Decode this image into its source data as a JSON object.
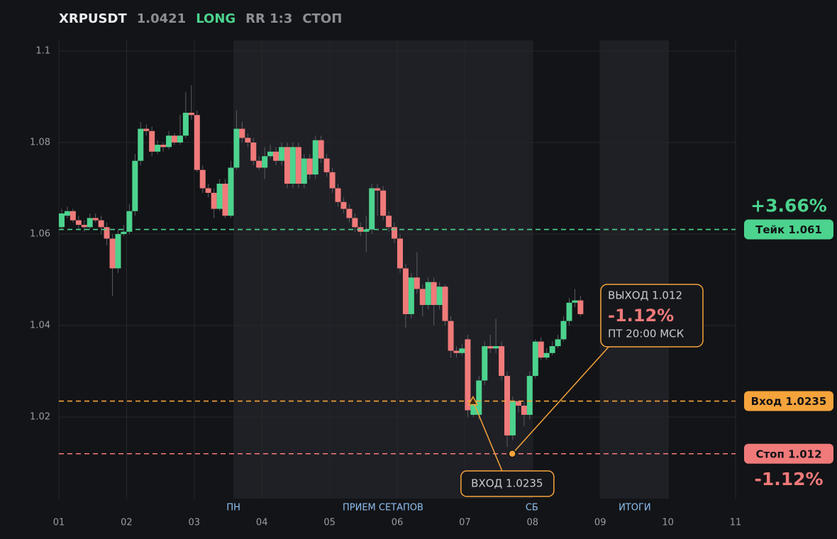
{
  "chart_data": {
    "type": "candlestick",
    "title": "XRPUSDT",
    "price": 1.0421,
    "side": "LONG",
    "rr": "RR 1:3",
    "status": "СТОП",
    "up_color": "#4cd38e",
    "down_color": "#f07a7a",
    "xlim": [
      1,
      11
    ],
    "xticks": [
      {
        "value": 1,
        "label": "01"
      },
      {
        "value": 2,
        "label": "02"
      },
      {
        "value": 3,
        "label": "03"
      },
      {
        "value": 4,
        "label": "04"
      },
      {
        "value": 5,
        "label": "05"
      },
      {
        "value": 6,
        "label": "06"
      },
      {
        "value": 7,
        "label": "07"
      },
      {
        "value": 8,
        "label": "08"
      },
      {
        "value": 9,
        "label": "09"
      },
      {
        "value": 10,
        "label": "10"
      },
      {
        "value": 11,
        "label": "11"
      }
    ],
    "ylim": [
      1.0022,
      1.1023
    ],
    "yticks": [
      1.02,
      1.04,
      1.06,
      1.08,
      1.1
    ],
    "grid": true,
    "sessions": [
      {
        "start": 3.58,
        "end": 7.99
      },
      {
        "start": 9.01,
        "end": 10.01
      }
    ],
    "session_labels": [
      {
        "label": "ПН",
        "x": 3.58
      },
      {
        "label": "ПРИЕМ СЕТАПОВ",
        "x": 5.79
      },
      {
        "label": "СБ",
        "x": 7.99
      },
      {
        "label": "ИТОГИ",
        "x": 9.51
      }
    ],
    "x": [
      1.042,
      1.125,
      1.208,
      1.292,
      1.375,
      1.458,
      1.542,
      1.625,
      1.708,
      1.792,
      1.875,
      1.958,
      2.042,
      2.125,
      2.208,
      2.292,
      2.375,
      2.458,
      2.542,
      2.625,
      2.708,
      2.792,
      2.875,
      2.958,
      3.042,
      3.125,
      3.208,
      3.292,
      3.375,
      3.458,
      3.542,
      3.625,
      3.708,
      3.792,
      3.875,
      3.958,
      4.042,
      4.125,
      4.208,
      4.292,
      4.375,
      4.458,
      4.542,
      4.625,
      4.708,
      4.792,
      4.875,
      4.958,
      5.042,
      5.125,
      5.208,
      5.292,
      5.375,
      5.458,
      5.542,
      5.625,
      5.708,
      5.792,
      5.875,
      5.958,
      6.042,
      6.125,
      6.208,
      6.292,
      6.375,
      6.458,
      6.542,
      6.625,
      6.708,
      6.792,
      6.875,
      6.958,
      7.042,
      7.125,
      7.208,
      7.292,
      7.375,
      7.458,
      7.542,
      7.625,
      7.708,
      7.792,
      7.875,
      7.958,
      8.042,
      8.125,
      8.208,
      8.292,
      8.375,
      8.458,
      8.542,
      8.625,
      8.708
    ],
    "open": [
      1.0615,
      1.064,
      1.065,
      1.063,
      1.062,
      1.0615,
      1.0635,
      1.063,
      1.0615,
      1.059,
      1.0525,
      1.06,
      1.0605,
      1.065,
      1.076,
      1.083,
      1.0825,
      1.078,
      1.0795,
      1.079,
      1.0815,
      1.08,
      1.0815,
      1.0865,
      1.086,
      1.074,
      1.07,
      1.069,
      1.0655,
      1.071,
      1.064,
      1.0745,
      1.083,
      1.081,
      1.08,
      1.076,
      1.0745,
      1.077,
      1.078,
      1.076,
      1.079,
      1.071,
      1.079,
      1.071,
      1.0765,
      1.073,
      1.0805,
      1.0765,
      1.0735,
      1.07,
      1.067,
      1.0655,
      1.0635,
      1.0615,
      1.0605,
      1.061,
      1.07,
      1.0695,
      1.064,
      1.0615,
      1.059,
      1.0525,
      1.0425,
      1.0505,
      1.048,
      1.0445,
      1.0495,
      1.0445,
      1.0485,
      1.041,
      1.0345,
      1.034,
      1.037,
      1.0205,
      1.0205,
      1.028,
      1.0355,
      1.035,
      1.0355,
      1.029,
      1.016,
      1.0235,
      1.0225,
      1.0205,
      1.029,
      1.0365,
      1.033,
      1.034,
      1.0355,
      1.037,
      1.041,
      1.045,
      1.0455
    ],
    "close": [
      1.0645,
      1.065,
      1.063,
      1.062,
      1.0615,
      1.0635,
      1.063,
      1.0615,
      1.059,
      1.0525,
      1.06,
      1.0605,
      1.065,
      1.076,
      1.083,
      1.0825,
      1.078,
      1.0795,
      1.079,
      1.0815,
      1.08,
      1.0815,
      1.0865,
      1.086,
      1.074,
      1.07,
      1.069,
      1.0655,
      1.071,
      1.064,
      1.0745,
      1.083,
      1.081,
      1.08,
      1.076,
      1.0745,
      1.077,
      1.078,
      1.076,
      1.079,
      1.071,
      1.079,
      1.071,
      1.0765,
      1.073,
      1.0805,
      1.0765,
      1.0735,
      1.07,
      1.067,
      1.0655,
      1.0635,
      1.0615,
      1.0605,
      1.061,
      1.07,
      1.0695,
      1.064,
      1.0615,
      1.059,
      1.0525,
      1.0425,
      1.0505,
      1.048,
      1.0445,
      1.0495,
      1.0445,
      1.0485,
      1.041,
      1.0345,
      1.034,
      1.035,
      1.0215,
      1.0235,
      1.028,
      1.0355,
      1.035,
      1.0355,
      1.029,
      1.016,
      1.0235,
      1.0225,
      1.0205,
      1.029,
      1.0365,
      1.033,
      1.034,
      1.0355,
      1.037,
      1.041,
      1.045,
      1.0455,
      1.0425
    ],
    "high": [
      1.0655,
      1.066,
      1.0655,
      1.064,
      1.063,
      1.0645,
      1.0645,
      1.064,
      1.0625,
      1.06,
      1.061,
      1.062,
      1.0665,
      1.0775,
      1.0845,
      1.084,
      1.0835,
      1.0805,
      1.08,
      1.0825,
      1.082,
      1.086,
      1.091,
      1.0925,
      1.087,
      1.075,
      1.071,
      1.07,
      1.072,
      1.072,
      1.076,
      1.087,
      1.0845,
      1.082,
      1.081,
      1.077,
      1.079,
      1.0795,
      1.079,
      1.08,
      1.08,
      1.08,
      1.08,
      1.0775,
      1.0775,
      1.0815,
      1.0815,
      1.0775,
      1.0745,
      1.071,
      1.068,
      1.0665,
      1.0645,
      1.0625,
      1.064,
      1.071,
      1.071,
      1.0705,
      1.065,
      1.0625,
      1.06,
      1.0535,
      1.0515,
      1.056,
      1.049,
      1.0505,
      1.0505,
      1.0495,
      1.049,
      1.042,
      1.0355,
      1.036,
      1.038,
      1.0245,
      1.029,
      1.0365,
      1.038,
      1.0415,
      1.0365,
      1.03,
      1.0245,
      1.0235,
      1.0235,
      1.03,
      1.037,
      1.0375,
      1.035,
      1.0365,
      1.038,
      1.042,
      1.046,
      1.048,
      1.0465
    ],
    "low": [
      1.061,
      1.0635,
      1.0625,
      1.061,
      1.0605,
      1.061,
      1.0625,
      1.06,
      1.0575,
      1.0465,
      1.0515,
      1.0595,
      1.06,
      1.064,
      1.075,
      1.0815,
      1.077,
      1.0775,
      1.078,
      1.0785,
      1.0795,
      1.0795,
      1.081,
      1.085,
      1.0735,
      1.069,
      1.068,
      1.0635,
      1.065,
      1.0635,
      1.0635,
      1.074,
      1.08,
      1.079,
      1.075,
      1.074,
      1.072,
      1.0765,
      1.075,
      1.075,
      1.07,
      1.07,
      1.07,
      1.07,
      1.072,
      1.072,
      1.0755,
      1.0725,
      1.069,
      1.066,
      1.0645,
      1.0625,
      1.0605,
      1.0595,
      1.056,
      1.06,
      1.064,
      1.063,
      1.0605,
      1.058,
      1.0515,
      1.0395,
      1.0415,
      1.047,
      1.042,
      1.0435,
      1.04,
      1.0435,
      1.04,
      1.033,
      1.033,
      1.0335,
      1.02,
      1.02,
      1.0195,
      1.027,
      1.034,
      1.034,
      1.028,
      1.0135,
      1.015,
      1.021,
      1.018,
      1.0195,
      1.0285,
      1.0325,
      1.0325,
      1.0335,
      1.035,
      1.0365,
      1.04,
      1.044,
      1.042
    ],
    "levels": [
      {
        "value": 1.061,
        "label": "Тейк 1.061",
        "color": "#4cd38e",
        "pct_label": "+3.66%",
        "pct_position": "above"
      },
      {
        "value": 1.0235,
        "label": "Вход 1.0235",
        "color": "#f5a33b"
      },
      {
        "value": 1.012,
        "label": "Стоп 1.012",
        "color": "#f07a7a",
        "pct_label": "-1.12%",
        "pct_position": "below"
      }
    ],
    "entry": {
      "label": "ВХОД 1.0235",
      "x": 7.12,
      "y": 1.0235
    },
    "exit": {
      "lines": [
        "ВЫХОД 1.012",
        "-1.12%",
        "ПТ 20:00 МСК"
      ],
      "x": 7.7,
      "y": 1.012
    }
  }
}
